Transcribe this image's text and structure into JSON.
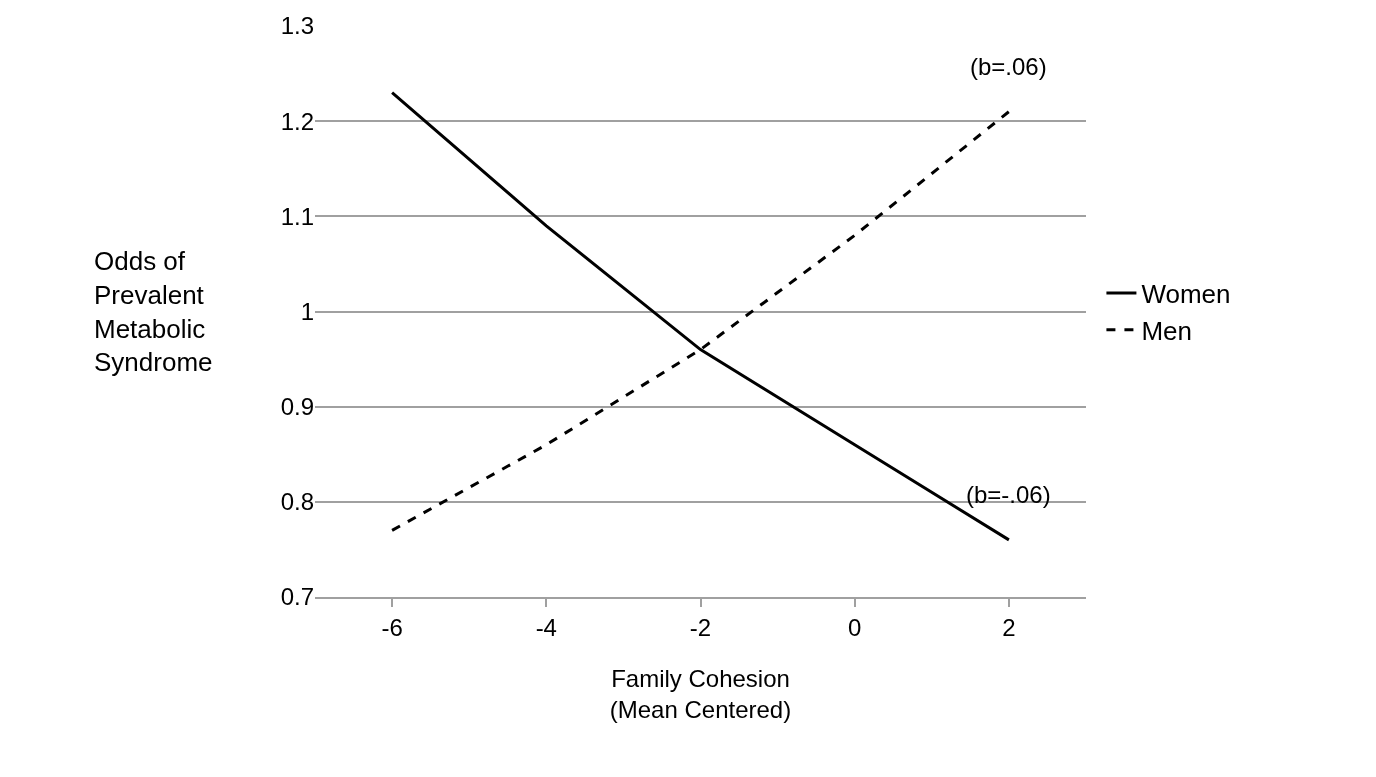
{
  "chart_data": {
    "type": "line",
    "xlabel": "Family Cohesion\n(Mean Centered)",
    "ylabel": "Odds of\nPrevalent\nMetabolic\nSyndrome",
    "categories": [
      "-6",
      "-4",
      "-2",
      "0",
      "2"
    ],
    "series": [
      {
        "name": "Women",
        "color": "#000000",
        "line_style": "solid",
        "values": [
          1.23,
          1.09,
          0.96,
          0.86,
          0.76
        ]
      },
      {
        "name": "Men",
        "color": "#000000",
        "line_style": "dashed",
        "values": [
          0.77,
          0.86,
          0.96,
          1.08,
          1.21
        ]
      }
    ],
    "ylim": [
      0.7,
      1.3
    ],
    "yticks": [
      0.7,
      0.8,
      0.9,
      1,
      1.1,
      1.2,
      1.3
    ],
    "grid": "y",
    "legend": "right",
    "marker": "none",
    "annotations": [
      {
        "text": "(b=.06)",
        "x": "2",
        "y": 1.21
      },
      {
        "text": "(b=-.06)",
        "x": "2",
        "y": 0.76
      }
    ]
  }
}
